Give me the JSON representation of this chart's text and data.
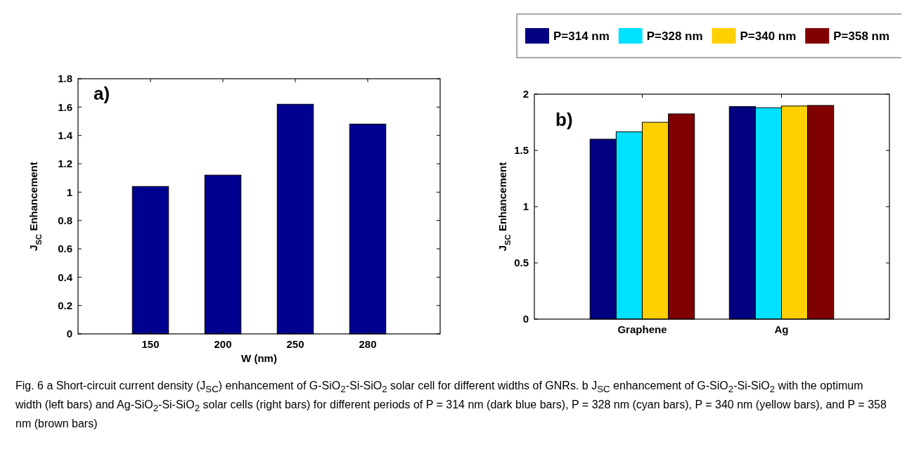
{
  "chart_data": [
    {
      "type": "bar",
      "xlabel": "W (nm)",
      "ylabel": "J$_{SC}$ Enhancement",
      "categories": [
        "150",
        "200",
        "250",
        "280"
      ],
      "values": [
        1.04,
        1.12,
        1.62,
        1.48
      ],
      "color": "#000090",
      "ylim": [
        0,
        1.8
      ],
      "yticks": [
        0,
        0.2,
        0.4,
        0.6,
        0.8,
        1,
        1.2,
        1.4,
        1.6,
        1.8
      ],
      "grid": false,
      "legend": false,
      "annotations": [
        "a)"
      ]
    },
    {
      "type": "bar",
      "ylabel": "J$_{SC}$ Enhancement",
      "categories": [
        "Graphene",
        "Ag"
      ],
      "series": [
        {
          "name": "P=314 nm",
          "color": "#000080",
          "values": [
            1.6,
            1.89
          ]
        },
        {
          "name": "P=328 nm",
          "color": "#00e0ff",
          "values": [
            1.665,
            1.88
          ]
        },
        {
          "name": "P=340 nm",
          "color": "#ffd000",
          "values": [
            1.75,
            1.895
          ]
        },
        {
          "name": "P=358 nm",
          "color": "#800000",
          "values": [
            1.825,
            1.9
          ]
        }
      ],
      "ylim": [
        0,
        2
      ],
      "yticks": [
        0,
        0.5,
        1,
        1.5,
        2
      ],
      "grid": false,
      "legend": "top",
      "annotations": [
        "b)",
        "Fig. 6 a Short-circuit current density (J$_{SC}$) enhancement of G-SiO$_{2}$-Si-SiO$_{2}$ solar cell for different widths of GNRs. b J$_{SC}$ enhancement of G-SiO$_{2}$-Si-SiO$_{2}$ with the optimum width (left bars) and Ag-SiO$_{2}$-Si-SiO$_{2}$ solar cells (right bars) for different periods of P = 314 nm (dark blue bars), P = 328 nm (cyan bars), P = 340 nm (yellow bars), and P = 358 nm (brown bars)"
      ]
    }
  ]
}
